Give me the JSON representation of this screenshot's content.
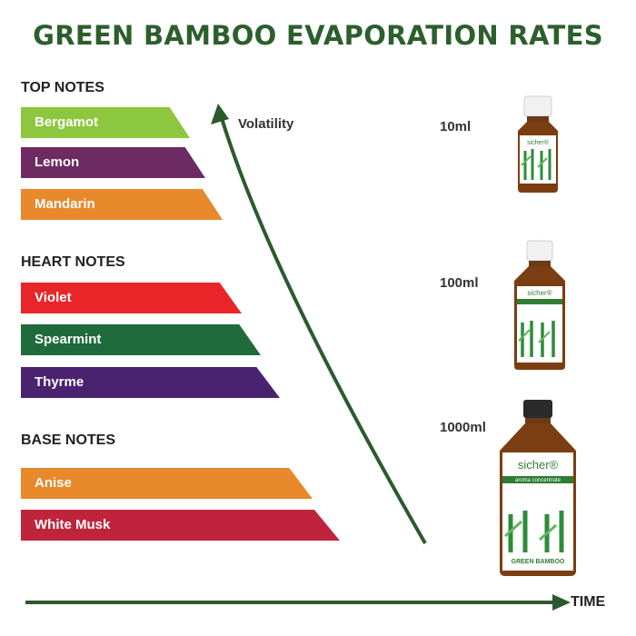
{
  "title": "GREEN BAMBOO EVAPORATION RATES",
  "groups": [
    {
      "label": "TOP NOTES",
      "notes": [
        {
          "name": "Bergamot",
          "color": "#8dc63f"
        },
        {
          "name": "Lemon",
          "color": "#6d2b62"
        },
        {
          "name": "Mandarin",
          "color": "#e8892b"
        }
      ]
    },
    {
      "label": "HEART NOTES",
      "notes": [
        {
          "name": "Violet",
          "color": "#e8262a"
        },
        {
          "name": "Spearmint",
          "color": "#1f6b3b"
        },
        {
          "name": "Thyrme",
          "color": "#4b2270"
        }
      ]
    },
    {
      "label": "BASE NOTES",
      "notes": [
        {
          "name": "Anise",
          "color": "#e8892b"
        },
        {
          "name": "White Musk",
          "color": "#c0243c"
        }
      ]
    }
  ],
  "volatility_label": "Volatility",
  "time_label": "TIME",
  "bottles": [
    {
      "size": "10ml",
      "brand": "sicher®"
    },
    {
      "size": "100ml",
      "brand": "sicher®"
    },
    {
      "size": "1000ml",
      "brand": "sicher®",
      "subtitle": "aroma concentrate",
      "product": "GREEN BAMBOO"
    }
  ],
  "colors": {
    "title": "#2c5f2d",
    "arrow": "#2c5a2e"
  }
}
